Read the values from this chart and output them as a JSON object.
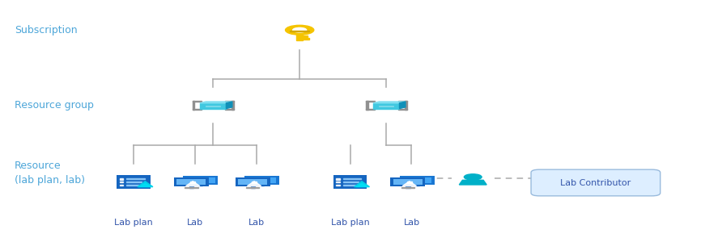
{
  "bg_color": "#ffffff",
  "label_color": "#4da6d9",
  "line_color": "#aaaaaa",
  "subscription_label": "Subscription",
  "resource_group_label": "Resource group",
  "resource_label": "Resource\n(lab plan, lab)",
  "lab_contributor_label": "Lab Contributor",
  "left_labels": [
    "Lab plan",
    "Lab",
    "Lab"
  ],
  "right_labels": [
    "Lab plan",
    "Lab"
  ],
  "key_color": "#f5c400",
  "key_dark": "#d4a800",
  "cube_front": "#40c8e0",
  "cube_top": "#80dff0",
  "cube_right": "#1090b8",
  "bracket_color": "#909090",
  "monitor_body": "#1565c0",
  "monitor_screen": "#42a5f5",
  "monitor_screen2": "#1976d2",
  "flask_color": "#00c8e0",
  "user_color": "#00b0c8",
  "lc_fill": "#ddeeff",
  "lc_edge": "#99bbdd",
  "lc_text": "#3355aa",
  "label_font": 9,
  "icon_label_font": 8
}
